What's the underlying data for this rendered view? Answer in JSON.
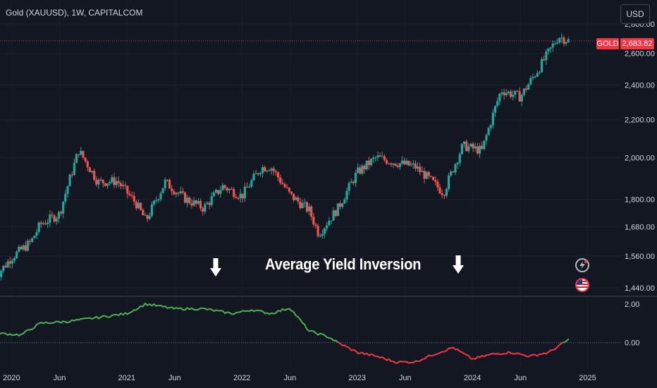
{
  "header": {
    "title": "Gold (XAUUSD), 1W, CAPITALCOM",
    "currency_button": "USD"
  },
  "last_price": {
    "symbol_label": "GOLD",
    "value_label": "2,683.82"
  },
  "annotation": {
    "text": "Average Yield Inversion"
  },
  "colors": {
    "background": "#131722",
    "up_candle": "#26a69a",
    "down_candle": "#ef5350",
    "indicator_positive": "#4caf50",
    "indicator_negative": "#f23645",
    "last_price_line": "#f23645"
  },
  "icons": [
    "down-arrow-icon",
    "down-arrow-icon",
    "flash-event-icon",
    "us-flag-event-icon"
  ],
  "chart_data": [
    {
      "type": "candlestick",
      "title": "Gold (XAUUSD), 1W, CAPITALCOM",
      "x_tick_labels": [
        "2020",
        "Jun",
        "2021",
        "Jun",
        "2022",
        "Jun",
        "2023",
        "Jun",
        "2024",
        "Jun",
        "2025"
      ],
      "y_tick_labels": [
        "2,800.00",
        "2,600.00",
        "2,400.00",
        "2,200.00",
        "2,000.00",
        "1,800.00",
        "1,680.00",
        "1,560.00",
        "1,440.00"
      ],
      "y_scale": "log",
      "ylim": [
        1410,
        2820
      ],
      "last_price": 2683.82,
      "series": [
        {
          "name": "GOLD",
          "x": [
            "2019-11",
            "2020-01",
            "2020-03",
            "2020-04",
            "2020-06",
            "2020-08",
            "2020-10",
            "2020-12",
            "2021-02",
            "2021-03",
            "2021-05",
            "2021-07",
            "2021-09",
            "2021-11",
            "2022-01",
            "2022-03",
            "2022-04",
            "2022-06",
            "2022-08",
            "2022-09",
            "2022-11",
            "2023-01",
            "2023-03",
            "2023-05",
            "2023-07",
            "2023-08",
            "2023-10",
            "2023-12",
            "2024-02",
            "2024-04",
            "2024-06",
            "2024-08",
            "2024-10",
            "2024-11"
          ],
          "values": [
            1465,
            1555,
            1615,
            1690,
            1735,
            2035,
            1880,
            1885,
            1780,
            1705,
            1880,
            1805,
            1760,
            1860,
            1815,
            1950,
            1955,
            1820,
            1750,
            1650,
            1760,
            1925,
            2000,
            1975,
            1955,
            1915,
            1830,
            2060,
            2035,
            2370,
            2330,
            2510,
            2715,
            2684
          ]
        }
      ]
    },
    {
      "type": "line",
      "y_tick_labels": [
        "2.00",
        "0.00"
      ],
      "ylim": [
        -1.25,
        2.25
      ],
      "series": [
        {
          "name": "",
          "x": [
            "2019-11",
            "2020-02",
            "2020-04",
            "2020-07",
            "2020-10",
            "2021-01",
            "2021-03",
            "2021-06",
            "2021-09",
            "2021-12",
            "2022-02",
            "2022-04",
            "2022-06",
            "2022-08",
            "2022-10",
            "2022-11",
            "2023-01",
            "2023-03",
            "2023-05",
            "2023-07",
            "2023-09",
            "2023-11",
            "2024-01",
            "2024-03",
            "2024-05",
            "2024-07",
            "2024-09",
            "2024-11"
          ],
          "values": [
            0.5,
            0.4,
            1.0,
            1.1,
            1.3,
            1.5,
            2.0,
            1.75,
            1.75,
            1.5,
            1.7,
            1.5,
            1.8,
            0.6,
            0.3,
            0.0,
            -0.5,
            -0.7,
            -1.0,
            -1.0,
            -0.6,
            -0.25,
            -0.85,
            -0.6,
            -0.5,
            -0.7,
            -0.5,
            0.15
          ]
        }
      ]
    }
  ]
}
